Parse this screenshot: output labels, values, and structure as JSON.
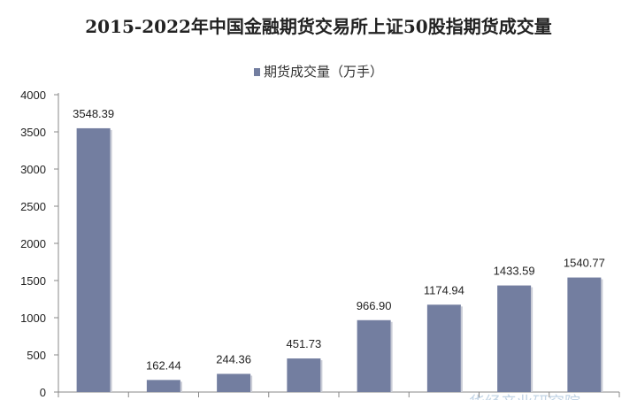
{
  "chart_data": {
    "type": "bar",
    "title": "2015-2022年中国金融期货交易所上证50股指期货成交量",
    "series": [
      {
        "name": "期货成交量（万手）",
        "values": [
          3548.39,
          162.44,
          244.36,
          451.73,
          966.9,
          1174.94,
          1433.59,
          1540.77
        ]
      }
    ],
    "value_labels": [
      "3548.39",
      "162.44",
      "244.36",
      "451.73",
      "966.90",
      "1174.94",
      "1433.59",
      "1540.77"
    ],
    "ylim": [
      0,
      4000
    ],
    "yticks": [
      "0",
      "500",
      "1000",
      "1500",
      "2000",
      "2500",
      "3000",
      "3500",
      "4000"
    ],
    "ytick_values": [
      0,
      500,
      1000,
      1500,
      2000,
      2500,
      3000,
      3500,
      4000
    ],
    "legend_position": "top-center",
    "grid": false,
    "bar_color": "#737EA0"
  },
  "watermark": "华经产业研究院"
}
